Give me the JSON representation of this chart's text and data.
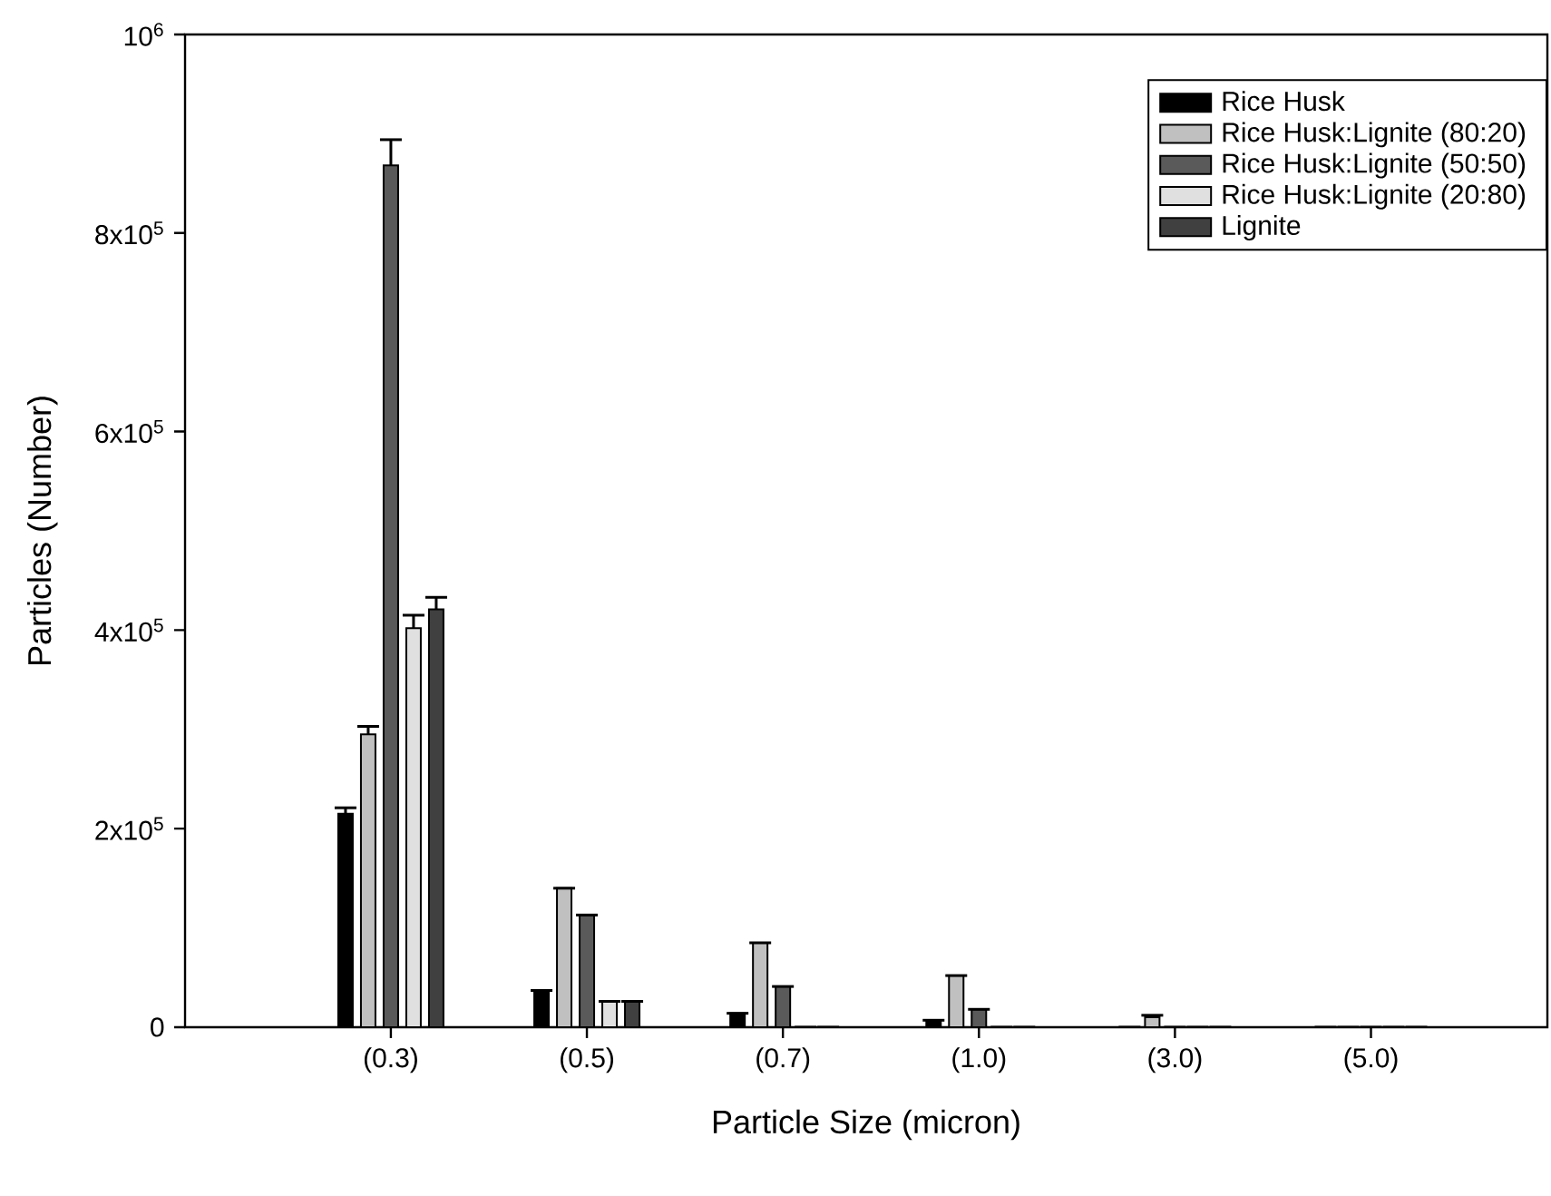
{
  "chart_data": {
    "type": "bar",
    "xlabel": "Particle Size (micron)",
    "ylabel": "Particles (Number)",
    "categories": [
      "(0.3)",
      "(0.5)",
      "(0.7)",
      "(1.0)",
      "(3.0)",
      "(5.0)"
    ],
    "series": [
      {
        "name": "Rice Husk",
        "color": "#000000",
        "values": [
          215000,
          37000,
          14000,
          7000,
          0,
          0
        ],
        "errors": [
          6000,
          null,
          null,
          null,
          null,
          null
        ]
      },
      {
        "name": "Rice Husk:Lignite (80:20)",
        "color": "#c0c0c0",
        "values": [
          295000,
          140000,
          85000,
          52000,
          10000,
          0
        ],
        "errors": [
          8000,
          null,
          null,
          null,
          2000,
          null
        ]
      },
      {
        "name": "Rice Husk:Lignite (50:50)",
        "color": "#5a5a5a",
        "values": [
          868000,
          113000,
          41000,
          18000,
          0,
          0
        ],
        "errors": [
          26000,
          null,
          null,
          null,
          null,
          null
        ]
      },
      {
        "name": "Rice Husk:Lignite (20:80)",
        "color": "#e0e0e0",
        "values": [
          402000,
          26000,
          0,
          0,
          0,
          0
        ],
        "errors": [
          13000,
          null,
          null,
          null,
          null,
          null
        ]
      },
      {
        "name": "Lignite",
        "color": "#404040",
        "values": [
          421000,
          26000,
          0,
          0,
          0,
          0
        ],
        "errors": [
          12000,
          null,
          null,
          null,
          null,
          null
        ]
      }
    ],
    "ylim": [
      0,
      1000000
    ],
    "yticks": [
      0,
      {
        "value": 200000,
        "label": "2x10$^{5}$"
      },
      {
        "value": 400000,
        "label": "4x10$^{5}$"
      },
      {
        "value": 600000,
        "label": "6x10$^{5}$"
      },
      {
        "value": 800000,
        "label": "8x10$^{5}$"
      },
      {
        "value": 1000000,
        "label": "10$^{6}$"
      }
    ],
    "legend": "top right",
    "grid": false
  }
}
